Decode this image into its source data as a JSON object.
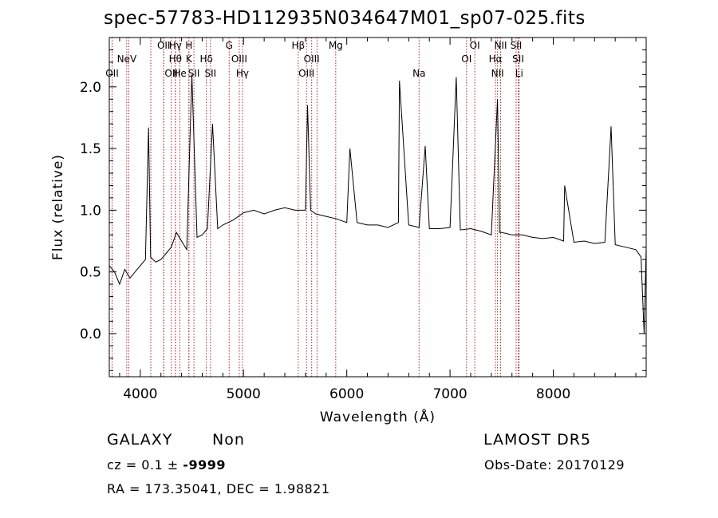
{
  "chart_data": {
    "type": "line",
    "title": "spec-57783-HD112935N034647M01_sp07-025.fits",
    "xlabel": "Wavelength (Å)",
    "ylabel": "Flux (relative)",
    "xlim": [
      3700,
      8900
    ],
    "ylim": [
      -0.35,
      2.4
    ],
    "xticks": [
      4000,
      5000,
      6000,
      7000,
      8000
    ],
    "yticks": [
      0.0,
      0.5,
      1.0,
      1.5,
      2.0
    ],
    "ytick_labels": [
      "0.0",
      "0.5",
      "1.0",
      "1.5",
      "2.0"
    ],
    "grid": false,
    "line_color": "#000000",
    "marker_color": "#a52a2a",
    "series": [
      {
        "x": [
          3700,
          3750,
          3800,
          3850,
          3900,
          3950,
          4000,
          4050,
          4080,
          4100,
          4150,
          4200,
          4250,
          4300,
          4350,
          4400,
          4450,
          4500,
          4550,
          4600,
          4650,
          4700,
          4750,
          4800,
          4850,
          4900,
          4950,
          5000,
          5100,
          5200,
          5300,
          5400,
          5500,
          5600,
          5620,
          5650,
          5700,
          5800,
          5900,
          6000,
          6030,
          6100,
          6200,
          6300,
          6400,
          6500,
          6510,
          6600,
          6700,
          6760,
          6800,
          6900,
          7000,
          7060,
          7100,
          7200,
          7300,
          7400,
          7460,
          7480,
          7500,
          7600,
          7700,
          7800,
          7900,
          8000,
          8100,
          8110,
          8200,
          8300,
          8400,
          8500,
          8560,
          8600,
          8700,
          8800,
          8850,
          8880,
          8900
        ],
        "y": [
          0.55,
          0.5,
          0.4,
          0.52,
          0.45,
          0.5,
          0.55,
          0.6,
          1.67,
          0.62,
          0.58,
          0.6,
          0.65,
          0.7,
          0.82,
          0.75,
          0.68,
          2.1,
          0.78,
          0.8,
          0.85,
          1.7,
          0.85,
          0.88,
          0.9,
          0.92,
          0.95,
          0.98,
          1.0,
          0.97,
          1.0,
          1.02,
          1.0,
          1.0,
          1.85,
          1.0,
          0.97,
          0.95,
          0.93,
          0.9,
          1.5,
          0.9,
          0.88,
          0.88,
          0.86,
          0.9,
          2.05,
          0.88,
          0.86,
          1.52,
          0.85,
          0.85,
          0.86,
          2.08,
          0.84,
          0.85,
          0.83,
          0.8,
          1.9,
          0.82,
          0.82,
          0.8,
          0.8,
          0.78,
          0.77,
          0.78,
          0.75,
          1.2,
          0.74,
          0.75,
          0.73,
          0.74,
          1.68,
          0.72,
          0.7,
          0.68,
          0.62,
          0.0,
          0.7
        ]
      }
    ],
    "line_markers": [
      {
        "x": 3426,
        "labels": [
          "NeV"
        ],
        "row": [
          2
        ]
      },
      {
        "x": 3727,
        "labels": [
          "OII"
        ],
        "row": [
          2
        ]
      },
      {
        "x": 3869,
        "labels": [
          "NeV"
        ],
        "row": [
          1
        ]
      },
      {
        "x": 3889,
        "labels": [],
        "row": []
      },
      {
        "x": 4102,
        "labels": [],
        "row": []
      },
      {
        "x": 4227,
        "labels": [],
        "row": []
      },
      {
        "x": 4227,
        "labels": [
          "OII"
        ],
        "row": [
          0
        ]
      },
      {
        "x": 4300,
        "labels": [
          "OII"
        ],
        "row": [
          2
        ]
      },
      {
        "x": 4340,
        "labels": [
          "Hγ"
        ],
        "row": [
          0
        ]
      },
      {
        "x": 4102,
        "labels": [],
        "row": []
      },
      {
        "x": 4340,
        "labels": [
          "Hθ"
        ],
        "row": [
          1
        ]
      },
      {
        "x": 4384,
        "labels": [
          "He"
        ],
        "row": [
          2
        ]
      },
      {
        "x": 4471,
        "labels": [
          "H"
        ],
        "row": [
          0
        ]
      },
      {
        "x": 4471,
        "labels": [
          "K"
        ],
        "row": [
          1
        ]
      },
      {
        "x": 4520,
        "labels": [
          "SII"
        ],
        "row": [
          2
        ]
      },
      {
        "x": 4640,
        "labels": [
          "Hδ"
        ],
        "row": [
          1
        ]
      },
      {
        "x": 4680,
        "labels": [
          "SII"
        ],
        "row": [
          2
        ]
      },
      {
        "x": 4861,
        "labels": [
          "G"
        ],
        "row": [
          0
        ]
      },
      {
        "x": 4959,
        "labels": [
          "OIII"
        ],
        "row": [
          1
        ]
      },
      {
        "x": 4990,
        "labels": [
          "Hγ"
        ],
        "row": [
          2
        ]
      },
      {
        "x": 5530,
        "labels": [
          "Hβ"
        ],
        "row": [
          0
        ]
      },
      {
        "x": 5610,
        "labels": [
          "OIII"
        ],
        "row": [
          2
        ]
      },
      {
        "x": 5660,
        "labels": [
          "OIII"
        ],
        "row": [
          1
        ]
      },
      {
        "x": 5712,
        "labels": [],
        "row": []
      },
      {
        "x": 5893,
        "labels": [
          "Mg"
        ],
        "row": [
          0
        ]
      },
      {
        "x": 6700,
        "labels": [
          "Na"
        ],
        "row": [
          2
        ]
      },
      {
        "x": 7160,
        "labels": [
          "OI"
        ],
        "row": [
          1
        ]
      },
      {
        "x": 7240,
        "labels": [
          "OI"
        ],
        "row": [
          0
        ]
      },
      {
        "x": 7440,
        "labels": [
          "Hα"
        ],
        "row": [
          1
        ]
      },
      {
        "x": 7460,
        "labels": [
          "NII"
        ],
        "row": [
          2
        ]
      },
      {
        "x": 7490,
        "labels": [
          "NII"
        ],
        "row": [
          0
        ]
      },
      {
        "x": 7640,
        "labels": [
          "SII"
        ],
        "row": [
          0
        ]
      },
      {
        "x": 7660,
        "labels": [
          "SII"
        ],
        "row": [
          1
        ]
      },
      {
        "x": 7670,
        "labels": [
          "Li"
        ],
        "row": [
          2
        ]
      }
    ]
  },
  "footer": {
    "class_label": "GALAXY",
    "subclass_label": "Non",
    "cz_prefix": "cz = 0.1 ± ",
    "cz_err": "-9999",
    "radec": "RA = 173.35041, DEC =   1.98821",
    "survey": "LAMOST DR5",
    "obs_date": "Obs-Date: 20170129"
  }
}
